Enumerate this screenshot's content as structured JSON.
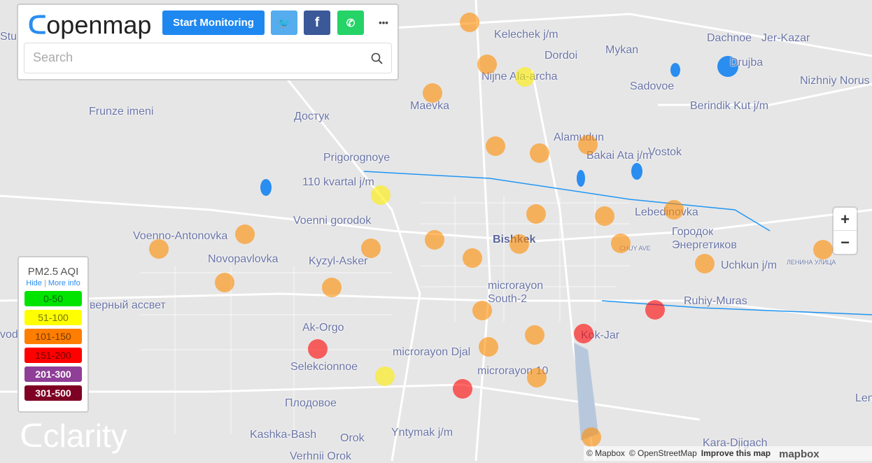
{
  "header": {
    "logo_text": "openmap",
    "start_monitoring": "Start Monitoring",
    "more_label": "•••",
    "search_placeholder": "Search",
    "colors": {
      "start": "#1e88f0",
      "twitter": "#55acee",
      "facebook": "#3b5998",
      "whatsapp": "#25d366"
    }
  },
  "legend": {
    "title": "PM2.5 AQI",
    "hide": "Hide",
    "separator": "|",
    "more_info": "More info",
    "levels": [
      {
        "label": "0-50",
        "color": "#00e400"
      },
      {
        "label": "51-100",
        "color": "#ffff00"
      },
      {
        "label": "101-150",
        "color": "#ff7e00"
      },
      {
        "label": "151-200",
        "color": "#ff0000"
      },
      {
        "label": "201-300",
        "color": "#8f3f97"
      },
      {
        "label": "301-500",
        "color": "#7e0023"
      }
    ]
  },
  "zoom": {
    "in": "+",
    "out": "−"
  },
  "watermark": "clarity",
  "attribution": {
    "mapbox": "© Mapbox",
    "osm": "© OpenStreetMap",
    "improve": "Improve this map",
    "logo": "mapbox"
  },
  "map_labels": [
    "Kelechek j/m",
    "Dordoi",
    "Mykan",
    "Dachnoe",
    "Jer-Kazar",
    "Drujba",
    "Nizhniy Norus",
    "Nijne Ala-archa",
    "Sadovoe",
    "Maevka",
    "Frunze imeni",
    "Достук",
    "Berindik Kut j/m",
    "Alamudun",
    "Bakai Ata j/m",
    "Vostok",
    "Prigorognoye",
    "110 kvartal j/m",
    "Lebedinovka",
    "Городок Энергетиков",
    "Voenni gorodok",
    "Voenno-Antonovka",
    "Bishkek",
    "Novopavlovka",
    "Kyzyl-Asker",
    "Uchkun j/m",
    "microrayon South-2",
    "Ruhiy-Muras",
    "верный ассвет",
    "Ak-Orgo",
    "Kok-Jar",
    "Selekcionnoe",
    "microrayon Djal",
    "microrayon 10",
    "Плодовое",
    "Kashka-Bash",
    "Orok",
    "Yntymak j/m",
    "Kara-Djigach",
    "Verhnii Orok",
    "Studi",
    "vod",
    "Len",
    "CHUY AVE",
    "ЛЕНИНА УЛИЦА"
  ],
  "sensors": [
    "moderate-high",
    "moderate-high",
    "moderate-high",
    "moderate-high",
    "moderate-high",
    "moderate-high",
    "moderate-high",
    "moderate-high",
    "moderate-high",
    "moderate-high",
    "moderate-high",
    "moderate-high",
    "moderate-high",
    "moderate-high",
    "moderate-high",
    "moderate-high",
    "moderate-high",
    "moderate-high",
    "moderate-high",
    "moderate-high",
    "moderate-high",
    "moderate-high",
    "moderate-high",
    "moderate-high",
    "moderate-high",
    "moderate",
    "moderate",
    "moderate",
    "unhealthy",
    "unhealthy",
    "unhealthy",
    "unhealthy"
  ],
  "sensor_colors": {
    "moderate-high": "#ff8c00",
    "moderate": "#ffee00",
    "unhealthy": "#ff0000"
  }
}
